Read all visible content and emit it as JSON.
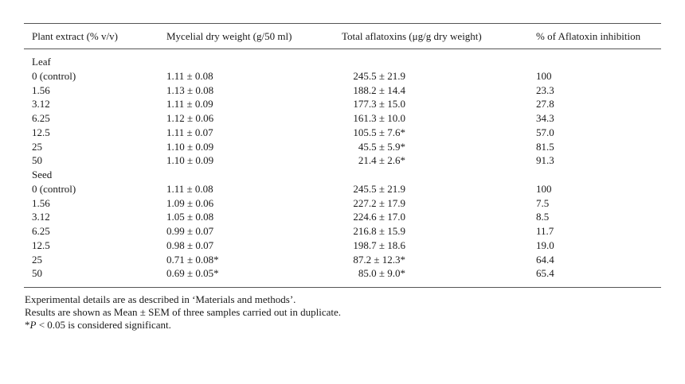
{
  "table": {
    "headers": [
      "Plant extract (% v/v)",
      "Mycelial dry weight (g/50 ml)",
      "Total aflatoxins (μg/g dry weight)",
      "% of Aflatoxin inhibition"
    ],
    "groups": [
      {
        "label": "Leaf",
        "rows": [
          [
            "0 (control)",
            "1.11 ± 0.08",
            "245.5 ± 21.9",
            "100"
          ],
          [
            "1.56",
            "1.13 ± 0.08",
            "188.2 ± 14.4",
            "23.3"
          ],
          [
            "3.12",
            "1.11 ± 0.09",
            "177.3 ± 15.0",
            "27.8"
          ],
          [
            "6.25",
            "1.12 ± 0.06",
            "161.3 ± 10.0",
            "34.3"
          ],
          [
            "12.5",
            "1.11 ± 0.07",
            "105.5 ± 7.6*",
            "57.0"
          ],
          [
            "25",
            "1.10 ± 0.09",
            "45.5 ± 5.9*",
            "81.5"
          ],
          [
            "50",
            "1.10 ± 0.09",
            "21.4 ± 2.6*",
            "91.3"
          ]
        ]
      },
      {
        "label": "Seed",
        "rows": [
          [
            "0 (control)",
            "1.11 ± 0.08",
            "245.5 ± 21.9",
            "100"
          ],
          [
            "1.56",
            "1.09 ± 0.06",
            "227.2 ± 17.9",
            "7.5"
          ],
          [
            "3.12",
            "1.05 ± 0.08",
            "224.6 ± 17.0",
            "8.5"
          ],
          [
            "6.25",
            "0.99 ± 0.07",
            "216.8 ± 15.9",
            "11.7"
          ],
          [
            "12.5",
            "0.98 ± 0.07",
            "198.7 ± 18.6",
            "19.0"
          ],
          [
            "25",
            "0.71 ± 0.08*",
            "87.2 ± 12.3*",
            "64.4"
          ],
          [
            "50",
            "0.69 ± 0.05*",
            "85.0 ± 9.0*",
            "65.4"
          ]
        ]
      }
    ]
  },
  "footnotes": {
    "line1": "Experimental details are as described in ‘Materials and methods’.",
    "line2": "Results are shown as Mean ± SEM of three samples carried out in duplicate.",
    "line3_prefix": "*",
    "line3_italic": "P",
    "line3_rest": " < 0.05 is considered significant."
  }
}
